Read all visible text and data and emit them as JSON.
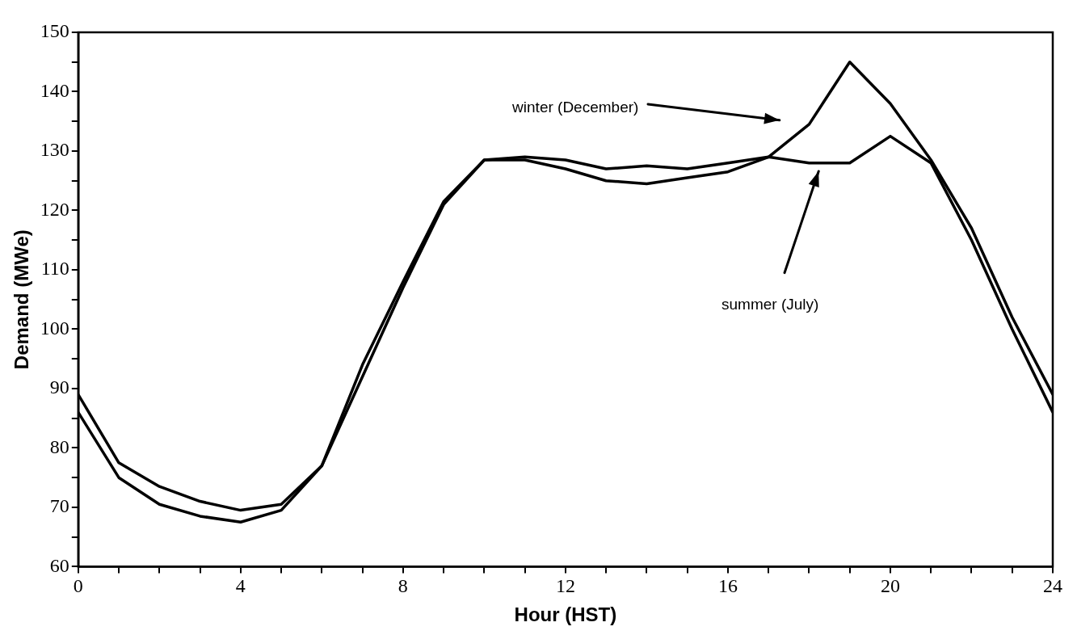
{
  "chart_data": {
    "type": "line",
    "xlabel": "Hour (HST)",
    "ylabel": "Demand (MWe)",
    "x": [
      0,
      1,
      2,
      3,
      4,
      5,
      6,
      7,
      8,
      9,
      10,
      11,
      12,
      13,
      14,
      15,
      16,
      17,
      18,
      19,
      20,
      21,
      22,
      23,
      24
    ],
    "series": [
      {
        "color": "#000000",
        "values": [
          89,
          77.5,
          73.5,
          71,
          69.5,
          70.5,
          77,
          94,
          108,
          121.5,
          128.5,
          128.5,
          127,
          125,
          124.5,
          125.5,
          126.5,
          129,
          134.5,
          145,
          138,
          128.5,
          117,
          102,
          89
        ]
      },
      {
        "color": "#000000",
        "values": [
          86,
          75,
          70.5,
          68.5,
          67.5,
          69.5,
          77,
          92,
          107,
          121,
          128.5,
          129,
          128.5,
          127,
          127.5,
          127,
          128,
          129,
          128,
          128,
          132.5,
          128,
          115,
          100,
          86
        ]
      }
    ],
    "annotations": [
      "winter (December)",
      "summer (July)"
    ],
    "xlim": [
      0,
      24
    ],
    "xticks": [
      0,
      {
        "value": 1,
        "label": null
      },
      {
        "value": 2,
        "label": null
      },
      {
        "value": 3,
        "label": null
      },
      4,
      {
        "value": 5,
        "label": null
      },
      {
        "value": 6,
        "label": null
      },
      {
        "value": 7,
        "label": null
      },
      8,
      {
        "value": 9,
        "label": null
      },
      {
        "value": 10,
        "label": null
      },
      {
        "value": 11,
        "label": null
      },
      12,
      {
        "value": 13,
        "label": null
      },
      {
        "value": 14,
        "label": null
      },
      {
        "value": 15,
        "label": null
      },
      16,
      {
        "value": 17,
        "label": null
      },
      {
        "value": 18,
        "label": null
      },
      {
        "value": 19,
        "label": null
      },
      20,
      {
        "value": 21,
        "label": null
      },
      {
        "value": 22,
        "label": null
      },
      {
        "value": 23,
        "label": null
      },
      24
    ],
    "ylim": [
      60,
      150
    ],
    "yticks": [
      60,
      {
        "value": 65,
        "label": null
      },
      70,
      {
        "value": 75,
        "label": null
      },
      80,
      {
        "value": 85,
        "label": null
      },
      90,
      {
        "value": 95,
        "label": null
      },
      100,
      {
        "value": 105,
        "label": null
      },
      110,
      {
        "value": 115,
        "label": null
      },
      120,
      {
        "value": 125,
        "label": null
      },
      130,
      {
        "value": 135,
        "label": null
      },
      140,
      {
        "value": 145,
        "label": null
      },
      150
    ],
    "grid": false,
    "legend": false,
    "marker": "none",
    "line_style": "solid"
  }
}
